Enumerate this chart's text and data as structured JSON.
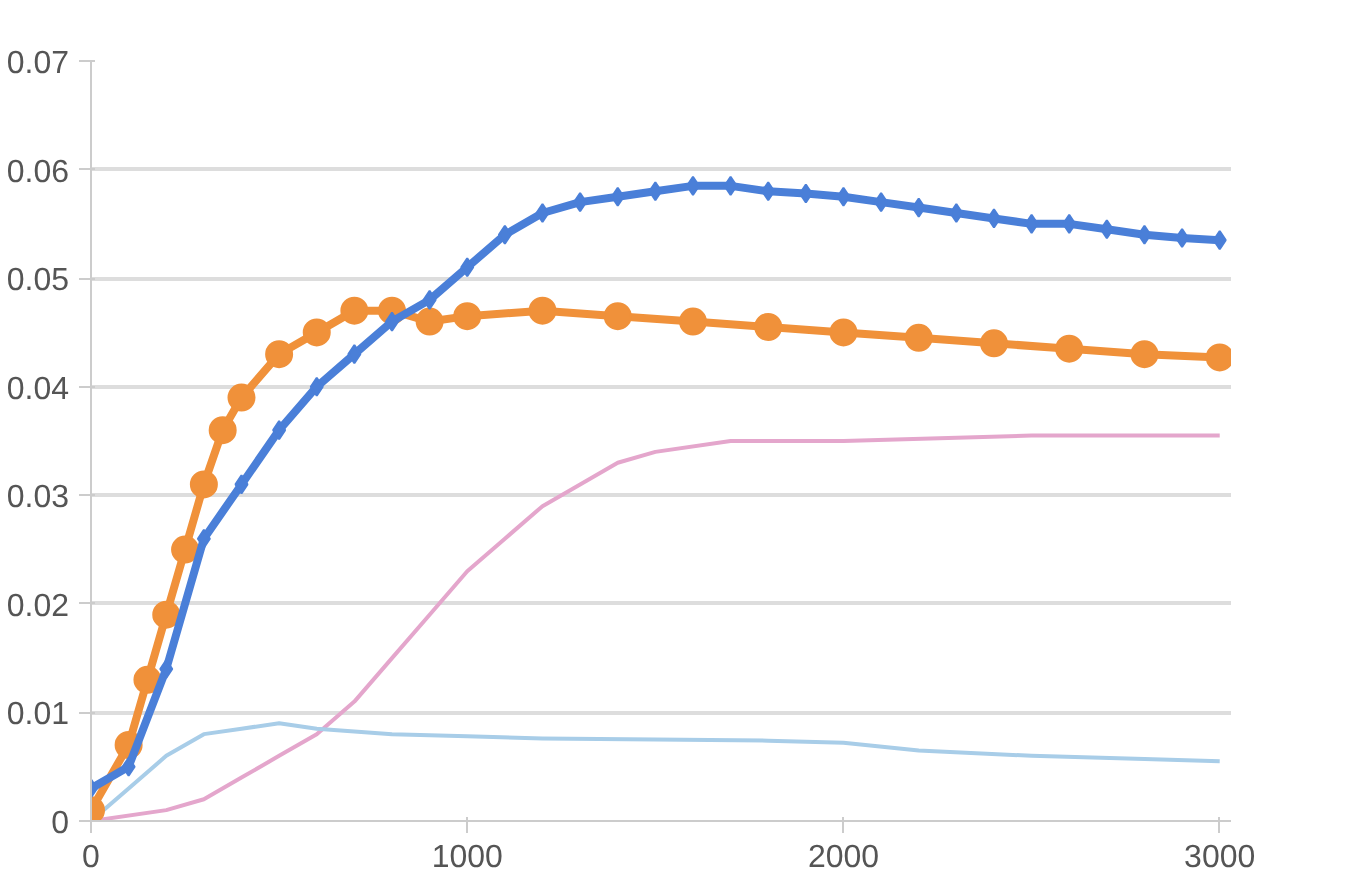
{
  "chart_data": {
    "type": "line",
    "xlim": [
      0,
      3030
    ],
    "xticks": [
      0,
      1000,
      2000,
      3000
    ],
    "ylim": [
      0,
      0.07
    ],
    "yticks": [
      0,
      0.01,
      0.02,
      0.03,
      0.04,
      0.05,
      0.06,
      0.07
    ],
    "grid": "y",
    "series": [
      {
        "color": "#4a7fd8",
        "marker": "diamond",
        "x": [
          0,
          100,
          200,
          300,
          400,
          500,
          600,
          700,
          800,
          900,
          1000,
          1100,
          1200,
          1300,
          1400,
          1500,
          1600,
          1700,
          1800,
          1900,
          2000,
          2100,
          2200,
          2300,
          2400,
          2500,
          2600,
          2700,
          2800,
          2900,
          3000
        ],
        "values": [
          0.003,
          0.005,
          0.014,
          0.026,
          0.031,
          0.036,
          0.04,
          0.043,
          0.046,
          0.048,
          0.051,
          0.054,
          0.056,
          0.057,
          0.0575,
          0.058,
          0.0585,
          0.0585,
          0.058,
          0.0578,
          0.0575,
          0.057,
          0.0565,
          0.056,
          0.0555,
          0.055,
          0.055,
          0.0545,
          0.054,
          0.0537,
          0.0535
        ]
      },
      {
        "color": "#f0913a",
        "marker": "circle",
        "x": [
          0,
          100,
          150,
          200,
          250,
          300,
          350,
          400,
          500,
          600,
          700,
          800,
          900,
          1000,
          1200,
          1400,
          1600,
          1800,
          2000,
          2200,
          2400,
          2600,
          2800,
          3000
        ],
        "values": [
          0.001,
          0.007,
          0.013,
          0.019,
          0.025,
          0.031,
          0.036,
          0.039,
          0.043,
          0.045,
          0.047,
          0.047,
          0.046,
          0.0465,
          0.047,
          0.0465,
          0.046,
          0.0455,
          0.045,
          0.0445,
          0.044,
          0.0435,
          0.043,
          0.0427
        ]
      },
      {
        "color": "#a8cde8",
        "marker": "none",
        "x": [
          0,
          100,
          200,
          300,
          400,
          500,
          600,
          800,
          1000,
          1200,
          1500,
          1800,
          2000,
          2200,
          2500,
          2800,
          3000
        ],
        "values": [
          0.0,
          0.003,
          0.006,
          0.008,
          0.0085,
          0.009,
          0.0085,
          0.008,
          0.0078,
          0.0076,
          0.0075,
          0.0074,
          0.0072,
          0.0065,
          0.006,
          0.0057,
          0.0055
        ]
      },
      {
        "color": "#e4a6cc",
        "marker": "none",
        "x": [
          0,
          200,
          300,
          400,
          500,
          600,
          700,
          800,
          900,
          1000,
          1100,
          1200,
          1300,
          1400,
          1500,
          1700,
          2000,
          2500,
          3000
        ],
        "values": [
          0.0,
          0.001,
          0.002,
          0.004,
          0.006,
          0.008,
          0.011,
          0.015,
          0.019,
          0.023,
          0.026,
          0.029,
          0.031,
          0.033,
          0.034,
          0.035,
          0.035,
          0.0355,
          0.0355
        ]
      }
    ]
  }
}
